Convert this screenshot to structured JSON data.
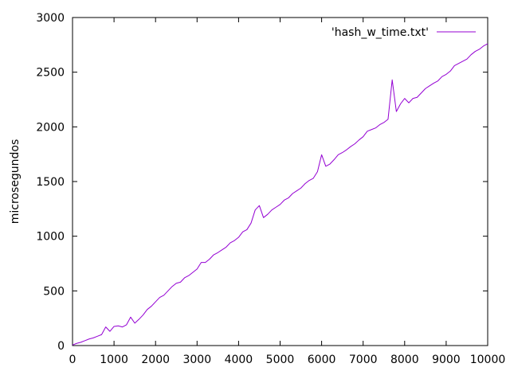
{
  "chart_data": {
    "type": "line",
    "title": "",
    "xlabel": "",
    "ylabel": "microsegundos",
    "xlim": [
      0,
      10000
    ],
    "ylim": [
      0,
      3000
    ],
    "xticks": [
      0,
      1000,
      2000,
      3000,
      4000,
      5000,
      6000,
      7000,
      8000,
      9000,
      10000
    ],
    "yticks": [
      0,
      500,
      1000,
      1500,
      2000,
      2500,
      3000
    ],
    "grid": false,
    "legend_position": "top-right",
    "series": [
      {
        "name": "'hash_w_time.txt'",
        "color": "#9400d3",
        "x": [
          0,
          100,
          200,
          300,
          400,
          500,
          600,
          700,
          800,
          900,
          1000,
          1100,
          1200,
          1300,
          1400,
          1500,
          1600,
          1700,
          1800,
          1900,
          2000,
          2100,
          2200,
          2300,
          2400,
          2500,
          2600,
          2700,
          2800,
          2900,
          3000,
          3100,
          3200,
          3300,
          3400,
          3500,
          3600,
          3700,
          3800,
          3900,
          4000,
          4100,
          4200,
          4300,
          4400,
          4500,
          4600,
          4700,
          4800,
          4900,
          5000,
          5100,
          5200,
          5300,
          5400,
          5500,
          5600,
          5700,
          5800,
          5900,
          6000,
          6100,
          6200,
          6300,
          6400,
          6500,
          6600,
          6700,
          6800,
          6900,
          7000,
          7100,
          7200,
          7300,
          7400,
          7500,
          7600,
          7700,
          7800,
          7900,
          8000,
          8100,
          8200,
          8300,
          8400,
          8500,
          8600,
          8700,
          8800,
          8900,
          9000,
          9100,
          9200,
          9300,
          9400,
          9500,
          9600,
          9700,
          9800,
          9900,
          10000
        ],
        "values": [
          5,
          20,
          30,
          45,
          60,
          70,
          85,
          100,
          170,
          130,
          175,
          180,
          170,
          190,
          260,
          205,
          240,
          280,
          330,
          360,
          400,
          440,
          460,
          500,
          540,
          570,
          580,
          620,
          640,
          670,
          700,
          760,
          760,
          790,
          830,
          850,
          875,
          900,
          940,
          960,
          990,
          1040,
          1060,
          1120,
          1240,
          1280,
          1170,
          1200,
          1240,
          1265,
          1290,
          1330,
          1350,
          1390,
          1415,
          1440,
          1480,
          1510,
          1530,
          1590,
          1745,
          1640,
          1660,
          1700,
          1745,
          1765,
          1790,
          1820,
          1845,
          1880,
          1910,
          1960,
          1975,
          1990,
          2020,
          2040,
          2070,
          2430,
          2140,
          2210,
          2260,
          2220,
          2260,
          2270,
          2310,
          2350,
          2375,
          2400,
          2420,
          2460,
          2480,
          2510,
          2560,
          2580,
          2600,
          2620,
          2660,
          2690,
          2710,
          2740,
          2760
        ]
      }
    ]
  }
}
